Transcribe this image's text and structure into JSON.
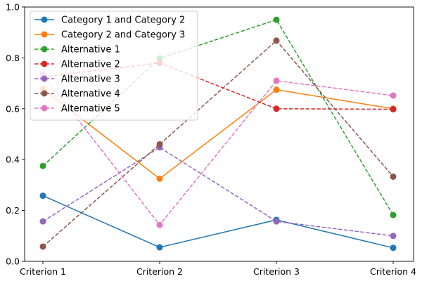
{
  "chart_data": {
    "type": "line",
    "categories": [
      "Criterion 1",
      "Criterion 2",
      "Criterion 3",
      "Criterion 4"
    ],
    "ylim": [
      0,
      1.0
    ],
    "yticks": [
      "0.0",
      "0.2",
      "0.4",
      "0.6",
      "0.8",
      "1.0"
    ],
    "title": "",
    "xlabel": "",
    "ylabel": "",
    "grid": false,
    "legend_position": "top-left",
    "series": [
      {
        "name": "Category 1 and Category 2",
        "values": [
          0.258,
          0.055,
          0.163,
          0.053
        ],
        "color": "#1f77b4",
        "style": "solid"
      },
      {
        "name": "Category 2 and Category 3",
        "values": [
          0.678,
          0.325,
          0.675,
          0.6
        ],
        "color": "#ff7f0e",
        "style": "solid"
      },
      {
        "name": "Alternative 1",
        "values": [
          0.375,
          0.798,
          0.95,
          0.182
        ],
        "color": "#2ca02c",
        "style": "dashed"
      },
      {
        "name": "Alternative 2",
        "values": [
          0.725,
          0.78,
          0.6,
          0.598
        ],
        "color": "#d62728",
        "style": "dashed"
      },
      {
        "name": "Alternative 3",
        "values": [
          0.157,
          0.448,
          0.157,
          0.1
        ],
        "color": "#9467bd",
        "style": "dashed"
      },
      {
        "name": "Alternative 4",
        "values": [
          0.058,
          0.46,
          0.868,
          0.333
        ],
        "color": "#8c564b",
        "style": "dashed"
      },
      {
        "name": "Alternative 5",
        "values": [
          0.735,
          0.143,
          0.71,
          0.652
        ],
        "color": "#e377c2",
        "style": "dashed"
      }
    ]
  }
}
